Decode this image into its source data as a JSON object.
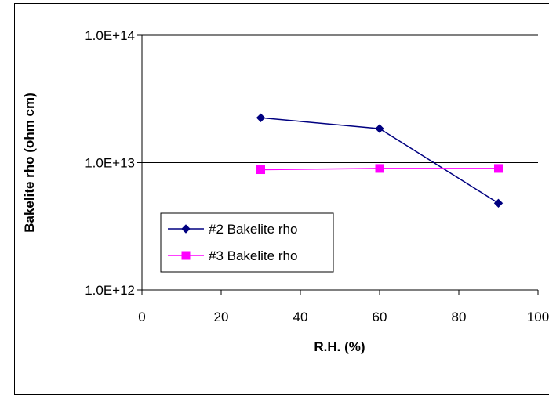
{
  "chart_data": {
    "type": "line",
    "title": "",
    "xlabel": "R.H. (%)",
    "ylabel": "Bakelite rho (ohm cm)",
    "xlim": [
      0,
      100
    ],
    "ylim": [
      1000000000000.0,
      100000000000000.0
    ],
    "yscale": "log",
    "x_ticks": [
      0,
      20,
      40,
      60,
      80,
      100
    ],
    "x_tick_labels": [
      "0",
      "20",
      "40",
      "60",
      "80",
      "100"
    ],
    "y_ticks": [
      1000000000000.0,
      10000000000000.0,
      100000000000000.0
    ],
    "y_tick_labels": [
      "1.0E+12",
      "1.0E+13",
      "1.0E+14"
    ],
    "grid": "horizontal major gridlines",
    "legend_position": "lower-left",
    "series": [
      {
        "name": "#2 Bakelite rho",
        "color": "#000080",
        "marker": "diamond",
        "x": [
          30,
          60,
          90
        ],
        "y": [
          22500000000000.0,
          18500000000000.0,
          4800000000000.0
        ]
      },
      {
        "name": "#3 Bakelite rho",
        "color": "#FF00FF",
        "marker": "square",
        "x": [
          30,
          60,
          90
        ],
        "y": [
          8800000000000.0,
          9000000000000.0,
          9000000000000.0
        ]
      }
    ]
  }
}
